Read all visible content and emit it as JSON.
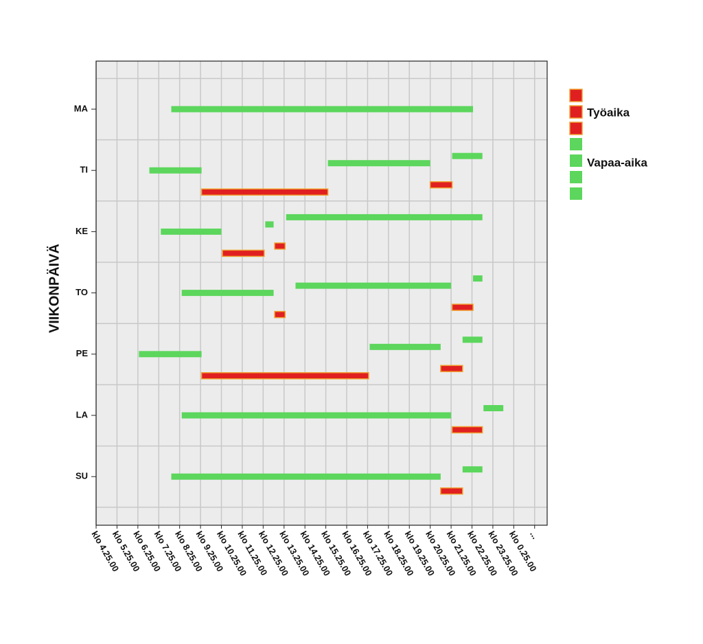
{
  "chart_data": {
    "type": "gantt",
    "y_label": "VIIKONPÄIVÄ",
    "categories": [
      "MA",
      "TI",
      "KE",
      "TO",
      "PE",
      "LA",
      "SU"
    ],
    "xlim": [
      0,
      21.6
    ],
    "xticks": [
      {
        "value": 0,
        "label": "klo 4.25.00"
      },
      {
        "value": 1,
        "label": "klo 5.25.00"
      },
      {
        "value": 2,
        "label": "klo 6.25.00"
      },
      {
        "value": 3,
        "label": "klo 7.25.00"
      },
      {
        "value": 4,
        "label": "klo 8.25.00"
      },
      {
        "value": 5,
        "label": "klo 9.25.00"
      },
      {
        "value": 6,
        "label": "klo 10.25.00"
      },
      {
        "value": 7,
        "label": "klo 11.25.00"
      },
      {
        "value": 8,
        "label": "klo 12.25.00"
      },
      {
        "value": 9,
        "label": "klo 13.25.00"
      },
      {
        "value": 10,
        "label": "klo 14.25.00"
      },
      {
        "value": 11,
        "label": "klo 15.25.00"
      },
      {
        "value": 12,
        "label": "klo 16.25.00"
      },
      {
        "value": 13,
        "label": "klo 17.25.00"
      },
      {
        "value": 14,
        "label": "klo 18.25.00"
      },
      {
        "value": 15,
        "label": "klo 19.25.00"
      },
      {
        "value": 16,
        "label": "klo 20.25.00"
      },
      {
        "value": 17,
        "label": "klo 21.25.00"
      },
      {
        "value": 18,
        "label": "klo 22.25.00"
      },
      {
        "value": 19,
        "label": "klo 23.25.00"
      },
      {
        "value": 20,
        "label": "klo 0.25.00"
      },
      {
        "value": 21,
        "label": "..."
      }
    ],
    "grid": true,
    "series": [
      {
        "name": "Työaika",
        "color": "#e02020",
        "bars": [
          {
            "day": "TI",
            "start": 16.0,
            "end": 17.05
          },
          {
            "day": "TI",
            "start": 5.05,
            "end": 11.1
          },
          {
            "day": "KE",
            "start": 8.55,
            "end": 9.05
          },
          {
            "day": "KE",
            "start": 6.05,
            "end": 8.05
          },
          {
            "day": "TO",
            "start": 17.05,
            "end": 18.05
          },
          {
            "day": "TO",
            "start": 8.55,
            "end": 9.05
          },
          {
            "day": "PE",
            "start": 16.5,
            "end": 17.55
          },
          {
            "day": "PE",
            "start": 5.05,
            "end": 13.05
          },
          {
            "day": "LA",
            "start": 17.05,
            "end": 18.5
          },
          {
            "day": "SU",
            "start": 16.5,
            "end": 17.55
          }
        ]
      },
      {
        "name": "Vapaa-aika",
        "color": "#5cd65c",
        "bars": [
          {
            "day": "MA",
            "start": 3.6,
            "end": 18.05
          },
          {
            "day": "TI",
            "start": 2.55,
            "end": 5.05
          },
          {
            "day": "TI",
            "start": 11.1,
            "end": 16.0
          },
          {
            "day": "TI",
            "start": 17.05,
            "end": 18.5
          },
          {
            "day": "KE",
            "start": 3.1,
            "end": 6.0
          },
          {
            "day": "KE",
            "start": 8.1,
            "end": 8.5
          },
          {
            "day": "KE",
            "start": 9.1,
            "end": 18.5
          },
          {
            "day": "TO",
            "start": 4.1,
            "end": 8.5
          },
          {
            "day": "TO",
            "start": 9.55,
            "end": 17.0
          },
          {
            "day": "TO",
            "start": 18.05,
            "end": 18.5
          },
          {
            "day": "PE",
            "start": 2.05,
            "end": 5.05
          },
          {
            "day": "PE",
            "start": 13.1,
            "end": 16.5
          },
          {
            "day": "PE",
            "start": 17.55,
            "end": 18.5
          },
          {
            "day": "LA",
            "start": 4.1,
            "end": 17.0
          },
          {
            "day": "LA",
            "start": 18.55,
            "end": 19.5
          },
          {
            "day": "SU",
            "start": 3.6,
            "end": 16.5
          },
          {
            "day": "SU",
            "start": 17.55,
            "end": 18.5
          }
        ]
      }
    ]
  }
}
